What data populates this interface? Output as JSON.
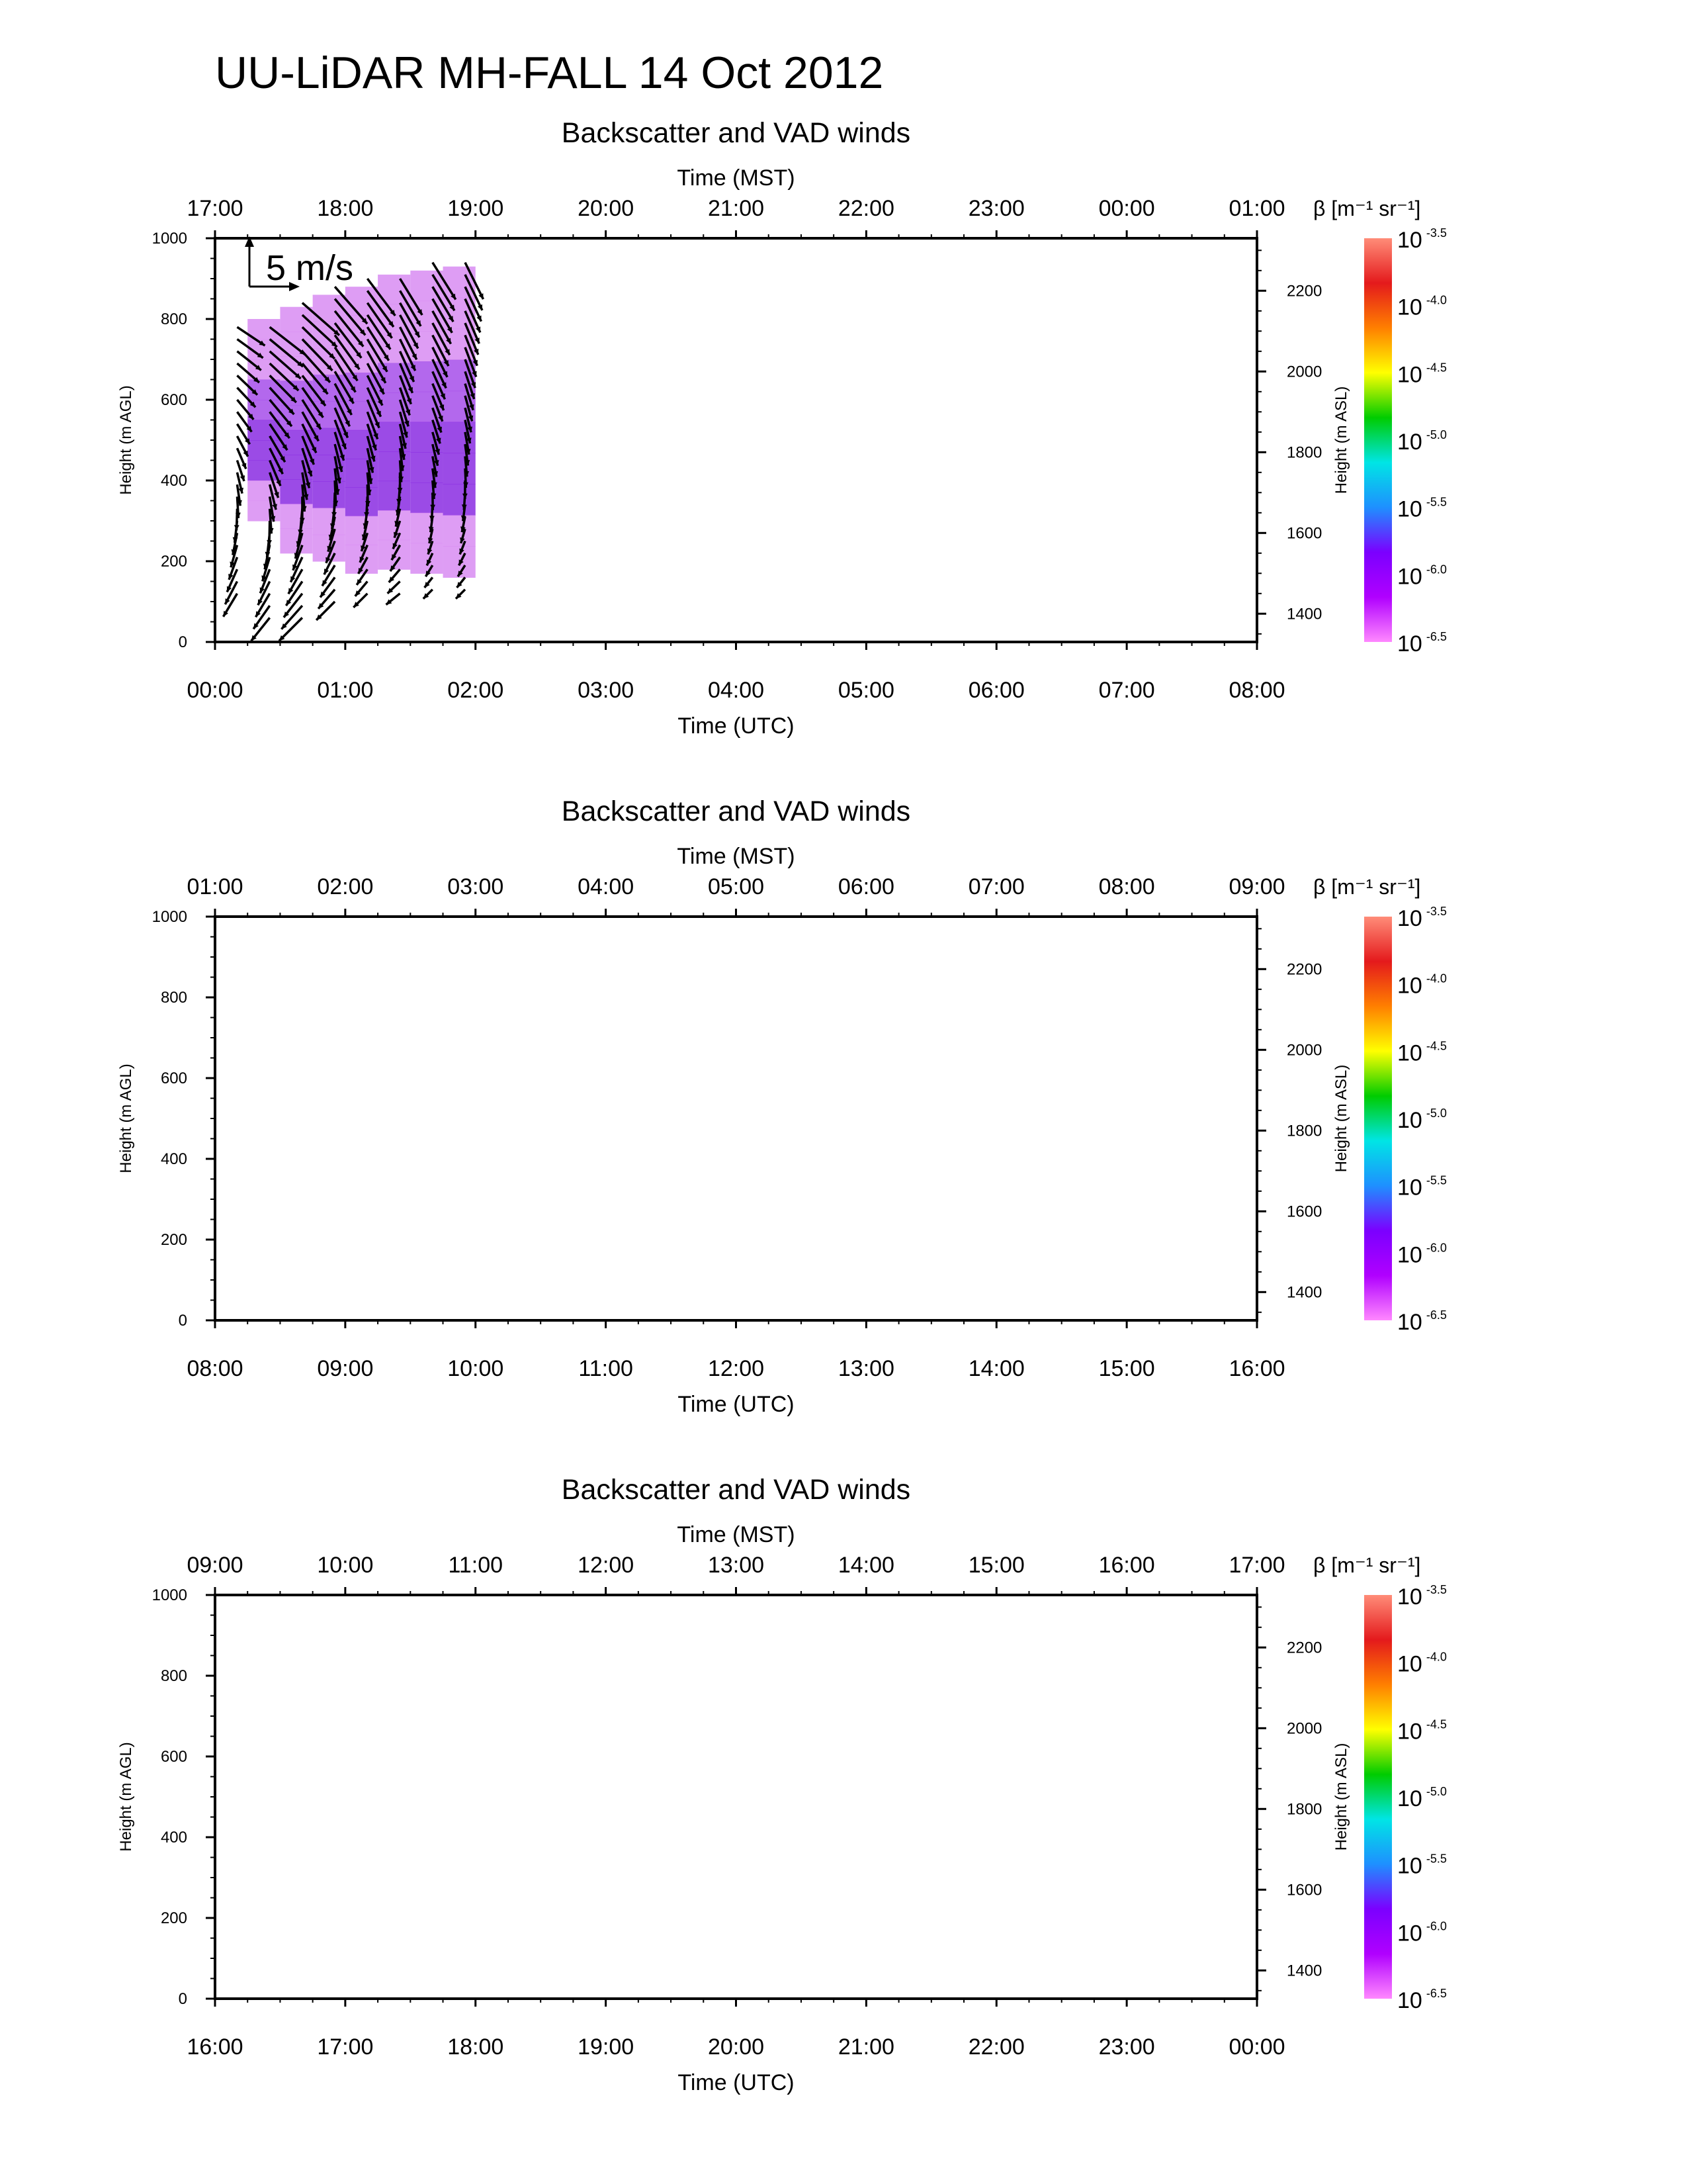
{
  "figure": {
    "title": "UU-LiDAR MH-FALL 14 Oct 2012"
  },
  "chart_data": [
    {
      "type": "heatmap",
      "title": "Backscatter and VAD winds",
      "top_axis_title": "Time (MST)",
      "top_tick_labels": [
        "17:00",
        "18:00",
        "19:00",
        "20:00",
        "21:00",
        "22:00",
        "23:00",
        "00:00",
        "01:00"
      ],
      "xlabel": "Time (UTC)",
      "x_tick_labels": [
        "00:00",
        "01:00",
        "02:00",
        "03:00",
        "04:00",
        "05:00",
        "06:00",
        "07:00",
        "08:00"
      ],
      "xlim_hours": [
        0,
        8
      ],
      "ylabel": "Height (m AGL)",
      "ylim": [
        0,
        1000
      ],
      "y_ticks": [
        0,
        200,
        400,
        600,
        800,
        1000
      ],
      "y2label": "Height (m ASL)",
      "y2_ticks": [
        1400,
        1600,
        1800,
        2000,
        2200
      ],
      "y2_offset_m": 1330,
      "colorbar": {
        "title": "β [m⁻¹ sr⁻¹]",
        "exponents": [
          "-3.5",
          "-4.0",
          "-4.5",
          "-5.0",
          "-5.5",
          "-6.0",
          "-6.5"
        ],
        "base": "10",
        "colors": [
          "#ff8c78",
          "#e41a1c",
          "#ff7f00",
          "#ffff00",
          "#00cc00",
          "#00e5e5",
          "#1e90ff",
          "#7b00ff",
          "#b000ff",
          "#ff88ff"
        ]
      },
      "scale_arrow_label": "5 m/s",
      "backscatter_blocks": [
        {
          "t0": 0.25,
          "t1": 0.5,
          "h0": 300,
          "h1": 800
        },
        {
          "t0": 0.5,
          "t1": 0.75,
          "h0": 220,
          "h1": 830
        },
        {
          "t0": 0.75,
          "t1": 1.0,
          "h0": 200,
          "h1": 860
        },
        {
          "t0": 1.0,
          "t1": 1.25,
          "h0": 170,
          "h1": 880
        },
        {
          "t0": 1.25,
          "t1": 1.5,
          "h0": 180,
          "h1": 910
        },
        {
          "t0": 1.5,
          "t1": 1.75,
          "h0": 170,
          "h1": 920
        },
        {
          "t0": 1.75,
          "t1": 2.0,
          "h0": 160,
          "h1": 930
        }
      ],
      "wind_profiles": [
        {
          "t": 0.17,
          "h_min": 120,
          "h_max": 780,
          "u_low": -1.5,
          "v_low": -2.5,
          "u_high": 3.0,
          "v_high": -2.0
        },
        {
          "t": 0.42,
          "h_min": 60,
          "h_max": 800,
          "u_low": -2.0,
          "v_low": -2.5,
          "u_high": 4.0,
          "v_high": -3.0
        },
        {
          "t": 0.67,
          "h_min": 60,
          "h_max": 840,
          "u_low": -2.5,
          "v_low": -2.5,
          "u_high": 4.0,
          "v_high": -3.5
        },
        {
          "t": 0.92,
          "h_min": 100,
          "h_max": 880,
          "u_low": -2.0,
          "v_low": -2.0,
          "u_high": 3.5,
          "v_high": -4.0
        },
        {
          "t": 1.17,
          "h_min": 120,
          "h_max": 900,
          "u_low": -1.5,
          "v_low": -1.5,
          "u_high": 3.0,
          "v_high": -4.0
        },
        {
          "t": 1.42,
          "h_min": 120,
          "h_max": 920,
          "u_low": -1.5,
          "v_low": -1.2,
          "u_high": 2.5,
          "v_high": -4.0
        },
        {
          "t": 1.67,
          "h_min": 130,
          "h_max": 940,
          "u_low": -1.0,
          "v_low": -1.0,
          "u_high": 2.5,
          "v_high": -4.0
        },
        {
          "t": 1.92,
          "h_min": 130,
          "h_max": 950,
          "u_low": -1.0,
          "v_low": -1.0,
          "u_high": 2.0,
          "v_high": -4.0
        }
      ]
    },
    {
      "type": "heatmap",
      "title": "Backscatter and VAD winds",
      "top_axis_title": "Time (MST)",
      "top_tick_labels": [
        "01:00",
        "02:00",
        "03:00",
        "04:00",
        "05:00",
        "06:00",
        "07:00",
        "08:00",
        "09:00"
      ],
      "xlabel": "Time (UTC)",
      "x_tick_labels": [
        "08:00",
        "09:00",
        "10:00",
        "11:00",
        "12:00",
        "13:00",
        "14:00",
        "15:00",
        "16:00"
      ],
      "xlim_hours": [
        8,
        16
      ],
      "ylabel": "Height (m AGL)",
      "ylim": [
        0,
        1000
      ],
      "y_ticks": [
        0,
        200,
        400,
        600,
        800,
        1000
      ],
      "y2label": "Height (m ASL)",
      "y2_ticks": [
        1400,
        1600,
        1800,
        2000,
        2200
      ],
      "y2_offset_m": 1330,
      "colorbar": {
        "title": "β [m⁻¹ sr⁻¹]",
        "exponents": [
          "-3.5",
          "-4.0",
          "-4.5",
          "-5.0",
          "-5.5",
          "-6.0",
          "-6.5"
        ],
        "base": "10",
        "colors": [
          "#ff8c78",
          "#e41a1c",
          "#ff7f00",
          "#ffff00",
          "#00cc00",
          "#00e5e5",
          "#1e90ff",
          "#7b00ff",
          "#b000ff",
          "#ff88ff"
        ]
      },
      "backscatter_blocks": [],
      "wind_profiles": []
    },
    {
      "type": "heatmap",
      "title": "Backscatter and VAD winds",
      "top_axis_title": "Time (MST)",
      "top_tick_labels": [
        "09:00",
        "10:00",
        "11:00",
        "12:00",
        "13:00",
        "14:00",
        "15:00",
        "16:00",
        "17:00"
      ],
      "xlabel": "Time (UTC)",
      "x_tick_labels": [
        "16:00",
        "17:00",
        "18:00",
        "19:00",
        "20:00",
        "21:00",
        "22:00",
        "23:00",
        "00:00"
      ],
      "xlim_hours": [
        16,
        24
      ],
      "ylabel": "Height (m AGL)",
      "ylim": [
        0,
        1000
      ],
      "y_ticks": [
        0,
        200,
        400,
        600,
        800,
        1000
      ],
      "y2label": "Height (m ASL)",
      "y2_ticks": [
        1400,
        1600,
        1800,
        2000,
        2200
      ],
      "y2_offset_m": 1330,
      "colorbar": {
        "title": "β [m⁻¹ sr⁻¹]",
        "exponents": [
          "-3.5",
          "-4.0",
          "-4.5",
          "-5.0",
          "-5.5",
          "-6.0",
          "-6.5"
        ],
        "base": "10",
        "colors": [
          "#ff8c78",
          "#e41a1c",
          "#ff7f00",
          "#ffff00",
          "#00cc00",
          "#00e5e5",
          "#1e90ff",
          "#7b00ff",
          "#b000ff",
          "#ff88ff"
        ]
      },
      "backscatter_blocks": [],
      "wind_profiles": []
    }
  ]
}
